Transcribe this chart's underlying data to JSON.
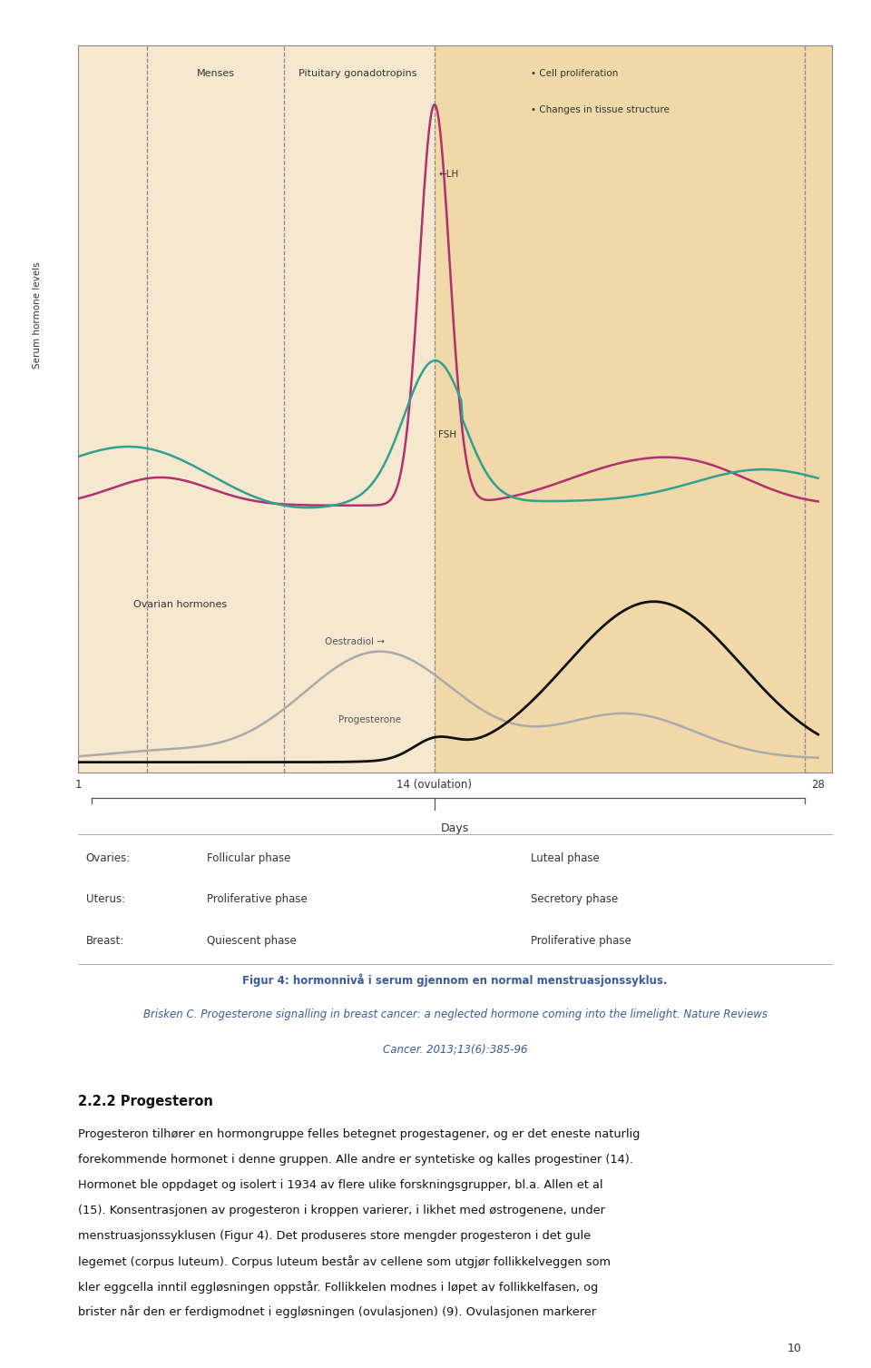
{
  "page_bg": "#ffffff",
  "chart_bg": "#f5e8ce",
  "chart_bg_luteal": "#f0d8a8",
  "fig_caption_line1": "Figur 4: hormonnivå i serum gjennom en normal menstruasjonssyklus.",
  "fig_ref_line1": "Brisken C. Progesterone signalling in breast cancer: a neglected hormone coming into the limelight. Nature Reviews",
  "fig_ref_line2": "Cancer. 2013;13(6):385-96",
  "section_title": "2.2.2 Progesteron",
  "body_lines": [
    "Progesteron tilhører en hormongruppe felles betegnet progestagener, og er det eneste naturlig",
    "forekommende hormonet i denne gruppen. Alle andre er syntetiske og kalles progestiner (14).",
    "Hormonet ble oppdaget og isolert i 1934 av flere ulike forskningsgrupper, bl.a. Allen et al",
    "(15). Konsentrasjonen av progesteron i kroppen varierer, i likhet med østrogenene, under",
    "menstruasjonssyklusen (Figur 4). Det produseres store mengder progesteron i det gule",
    "legemet (corpus luteum). Corpus luteum består av cellene som utgjør follikkelveggen som",
    "kler eggcella inntil eggløsningen oppstår. Follikkelen modnes i løpet av follikkelfasen, og",
    "brister når den er ferdigmodnet i eggløsningen (ovulasjonen) (9). Ovulasjonen markerer"
  ],
  "page_number": "10",
  "lh_color": "#b03070",
  "fsh_color": "#30a090",
  "oestradiol_color": "#aaaaaa",
  "progesterone_color": "#111111",
  "dashed_line_color": "#888888",
  "text_color": "#333333",
  "caption_color": "#3a5a9a",
  "phase_label_color": "#555555"
}
